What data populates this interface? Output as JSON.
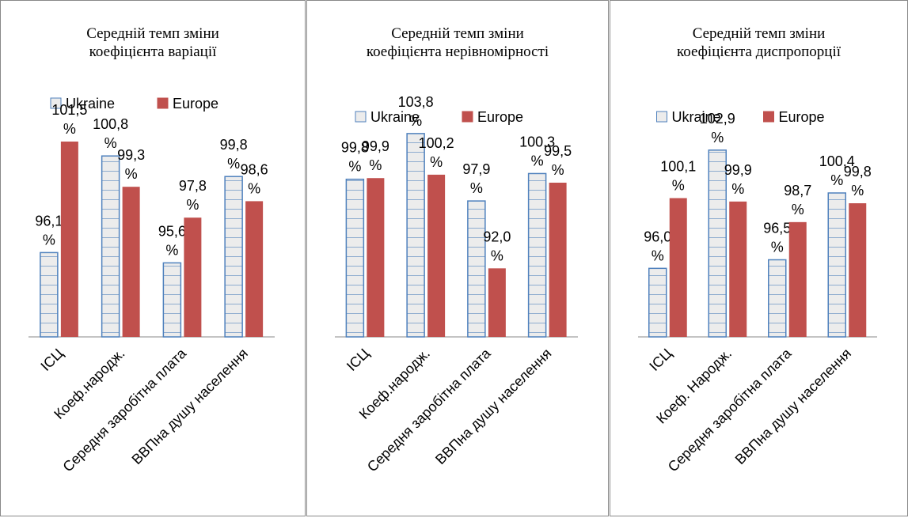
{
  "chart_data": [
    {
      "type": "bar",
      "title": "Середній темп  зміни коефіцієнта варіації",
      "categories": [
        "ІСЦ",
        "Коеф.народж.",
        "Середня заробітна плата",
        "ВВПна душу населення"
      ],
      "series": [
        {
          "name": "Ukraine",
          "color": "#4f81bd",
          "values": [
            96.1,
            100.8,
            95.6,
            99.8
          ],
          "value_labels": [
            "96,1 %",
            "100,8 %",
            "95,6 %",
            "99,8 %"
          ]
        },
        {
          "name": "Europe",
          "color": "#c0504d",
          "values": [
            101.5,
            99.3,
            97.8,
            98.6
          ],
          "value_labels": [
            "101,5 %",
            "99,3 %",
            "97,8 %",
            "98,6 %"
          ]
        }
      ],
      "ylim": [
        92,
        102
      ]
    },
    {
      "type": "bar",
      "title": "Середній темп зміни коефіцієнта нерівномірності",
      "categories": [
        "ІСЦ",
        "Коеф.народж.",
        "Середня заробітна плата",
        "ВВПна душу населення"
      ],
      "series": [
        {
          "name": "Ukraine",
          "color": "#4f81bd",
          "values": [
            99.8,
            103.8,
            97.9,
            100.3
          ],
          "value_labels": [
            "99,8 %",
            "103,8 %",
            "97,9 %",
            "100,3 %"
          ]
        },
        {
          "name": "Europe",
          "color": "#c0504d",
          "values": [
            99.9,
            100.2,
            92.0,
            99.5
          ],
          "value_labels": [
            "99,9 %",
            "100,2 %",
            "92,0 %",
            "99,5 %"
          ]
        }
      ],
      "ylim": [
        86,
        104
      ]
    },
    {
      "type": "bar",
      "title": "Середній темп зміни коефіцієнта диспропорції",
      "categories": [
        "ІСЦ",
        "Коеф. Народж.",
        "Середня заробітна плата",
        "ВВПна душу населення"
      ],
      "series": [
        {
          "name": "Ukraine",
          "color": "#4f81bd",
          "values": [
            96.0,
            102.9,
            96.5,
            100.4
          ],
          "value_labels": [
            "96,0 %",
            "102,9 %",
            "96,5 %",
            "100,4 %"
          ]
        },
        {
          "name": "Europe",
          "color": "#c0504d",
          "values": [
            100.1,
            99.9,
            98.7,
            99.8
          ],
          "value_labels": [
            "100,1 %",
            "99,9 %",
            "98,7 %",
            "99,8 %"
          ]
        }
      ],
      "ylim": [
        92,
        104
      ]
    }
  ]
}
